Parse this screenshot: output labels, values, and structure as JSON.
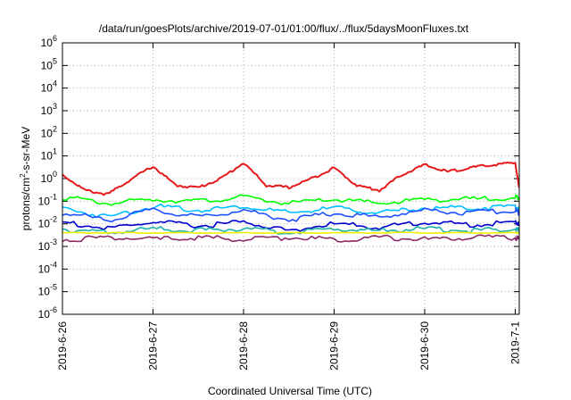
{
  "chart_data": {
    "type": "line",
    "title": "/data/run/goesPlots/archive/2019-07-01/01:00/flux/../flux/5daysMoonFluxes.txt",
    "xlabel": "Coordinated Universal Time (UTC)",
    "ylabel_main": "protons/cm",
    "ylabel_sup": "2",
    "ylabel_rest": "-s-sr-MeV",
    "y_scale": "log",
    "ylim": [
      1e-06,
      1000000.0
    ],
    "xlim_days": [
      "2019-6-26",
      "2019-7-1 01:00"
    ],
    "y_ticks": [
      {
        "exp": "-6"
      },
      {
        "exp": "-5"
      },
      {
        "exp": "-4"
      },
      {
        "exp": "-3"
      },
      {
        "exp": "-2"
      },
      {
        "exp": "-1"
      },
      {
        "exp": "0"
      },
      {
        "exp": "1"
      },
      {
        "exp": "2"
      },
      {
        "exp": "3"
      },
      {
        "exp": "4"
      },
      {
        "exp": "5"
      },
      {
        "exp": "6"
      }
    ],
    "y_tick_base": "10",
    "x_ticks": [
      "2019-6-26",
      "2019-6-27",
      "2019-6-28",
      "2019-6-29",
      "2019-6-30",
      "2019-7-1"
    ],
    "grid": true,
    "legend": "none",
    "series": [
      {
        "color": "#e41a1c",
        "points": [
          [
            "2019-06-26 00:00",
            1.5
          ],
          [
            "2019-06-26 06:00",
            0.3
          ],
          [
            "2019-06-26 12:00",
            0.2
          ],
          [
            "2019-06-26 18:00",
            0.9
          ],
          [
            "2019-06-27 00:00",
            3.5
          ],
          [
            "2019-06-27 06:00",
            0.5
          ],
          [
            "2019-06-27 12:00",
            0.4
          ],
          [
            "2019-06-27 18:00",
            1.0
          ],
          [
            "2019-06-28 00:00",
            5.0
          ],
          [
            "2019-06-28 06:00",
            0.5
          ],
          [
            "2019-06-28 12:00",
            0.4
          ],
          [
            "2019-06-28 18:00",
            1.0
          ],
          [
            "2019-06-29 00:00",
            3.0
          ],
          [
            "2019-06-29 06:00",
            0.5
          ],
          [
            "2019-06-29 12:00",
            0.3
          ],
          [
            "2019-06-29 18:00",
            1.5
          ],
          [
            "2019-06-30 00:00",
            4.0
          ],
          [
            "2019-06-30 06:00",
            2.0
          ],
          [
            "2019-06-30 12:00",
            3.0
          ],
          [
            "2019-06-30 18:00",
            4.0
          ],
          [
            "2019-07-01 00:00",
            5.0
          ],
          [
            "2019-07-01 01:00",
            0.4
          ]
        ]
      },
      {
        "color": "#00ff00",
        "points": [
          [
            "2019-06-26 00:00",
            0.15
          ],
          [
            "2019-06-26 12:00",
            0.08
          ],
          [
            "2019-06-27 00:00",
            0.12
          ],
          [
            "2019-06-27 12:00",
            0.1
          ],
          [
            "2019-06-28 00:00",
            0.15
          ],
          [
            "2019-06-28 12:00",
            0.08
          ],
          [
            "2019-06-29 00:00",
            0.12
          ],
          [
            "2019-06-29 12:00",
            0.08
          ],
          [
            "2019-06-30 00:00",
            0.12
          ],
          [
            "2019-06-30 12:00",
            0.12
          ],
          [
            "2019-07-01 00:00",
            0.15
          ],
          [
            "2019-07-01 01:00",
            0.15
          ]
        ]
      },
      {
        "color": "#00bfff",
        "points": [
          [
            "2019-06-26 00:00",
            0.05
          ],
          [
            "2019-06-26 12:00",
            0.02
          ],
          [
            "2019-06-27 00:00",
            0.06
          ],
          [
            "2019-06-27 12:00",
            0.04
          ],
          [
            "2019-06-28 00:00",
            0.06
          ],
          [
            "2019-06-28 12:00",
            0.03
          ],
          [
            "2019-06-29 00:00",
            0.05
          ],
          [
            "2019-06-29 12:00",
            0.03
          ],
          [
            "2019-06-30 00:00",
            0.05
          ],
          [
            "2019-06-30 12:00",
            0.05
          ],
          [
            "2019-07-01 00:00",
            0.06
          ],
          [
            "2019-07-01 01:00",
            0.04
          ]
        ]
      },
      {
        "color": "#1e50ff",
        "points": [
          [
            "2019-06-26 00:00",
            0.03
          ],
          [
            "2019-06-26 12:00",
            0.015
          ],
          [
            "2019-06-27 00:00",
            0.04
          ],
          [
            "2019-06-27 12:00",
            0.02
          ],
          [
            "2019-06-28 00:00",
            0.04
          ],
          [
            "2019-06-28 12:00",
            0.015
          ],
          [
            "2019-06-29 00:00",
            0.03
          ],
          [
            "2019-06-29 12:00",
            0.02
          ],
          [
            "2019-06-30 00:00",
            0.04
          ],
          [
            "2019-06-30 12:00",
            0.03
          ],
          [
            "2019-07-01 00:00",
            0.04
          ],
          [
            "2019-07-01 01:00",
            0.03
          ]
        ]
      },
      {
        "color": "#0000cd",
        "points": [
          [
            "2019-06-26 00:00",
            0.012
          ],
          [
            "2019-06-26 12:00",
            0.006
          ],
          [
            "2019-06-27 00:00",
            0.012
          ],
          [
            "2019-06-27 12:00",
            0.008
          ],
          [
            "2019-06-28 00:00",
            0.012
          ],
          [
            "2019-06-28 12:00",
            0.005
          ],
          [
            "2019-06-29 00:00",
            0.01
          ],
          [
            "2019-06-29 12:00",
            0.007
          ],
          [
            "2019-06-30 00:00",
            0.012
          ],
          [
            "2019-06-30 12:00",
            0.009
          ],
          [
            "2019-07-01 00:00",
            0.012
          ],
          [
            "2019-07-01 01:00",
            0.01
          ]
        ]
      },
      {
        "color": "#20b2aa",
        "points": [
          [
            "2019-06-26 00:00",
            0.006
          ],
          [
            "2019-06-26 12:00",
            0.004
          ],
          [
            "2019-06-27 00:00",
            0.006
          ],
          [
            "2019-06-27 12:00",
            0.005
          ],
          [
            "2019-06-28 00:00",
            0.006
          ],
          [
            "2019-06-28 12:00",
            0.004
          ],
          [
            "2019-06-29 00:00",
            0.006
          ],
          [
            "2019-06-29 12:00",
            0.005
          ],
          [
            "2019-06-30 00:00",
            0.006
          ],
          [
            "2019-06-30 12:00",
            0.005
          ],
          [
            "2019-07-01 00:00",
            0.006
          ],
          [
            "2019-07-01 01:00",
            0.005
          ]
        ]
      },
      {
        "color": "#f0f000",
        "points": [
          [
            "2019-06-26 00:00",
            0.004
          ],
          [
            "2019-06-26 12:00",
            0.004
          ],
          [
            "2019-06-27 00:00",
            0.004
          ],
          [
            "2019-06-27 12:00",
            0.004
          ],
          [
            "2019-06-28 00:00",
            0.004
          ],
          [
            "2019-06-28 12:00",
            0.004
          ],
          [
            "2019-06-29 00:00",
            0.004
          ],
          [
            "2019-06-29 12:00",
            0.004
          ],
          [
            "2019-06-30 00:00",
            0.004
          ],
          [
            "2019-06-30 12:00",
            0.004
          ],
          [
            "2019-07-01 00:00",
            0.004
          ],
          [
            "2019-07-01 01:00",
            0.004
          ]
        ]
      },
      {
        "color": "#8b2a6b",
        "points": [
          [
            "2019-06-26 00:00",
            0.002
          ],
          [
            "2019-06-26 12:00",
            0.0025
          ],
          [
            "2019-06-27 00:00",
            0.002
          ],
          [
            "2019-06-27 12:00",
            0.0025
          ],
          [
            "2019-06-28 00:00",
            0.002
          ],
          [
            "2019-06-28 12:00",
            0.0025
          ],
          [
            "2019-06-29 00:00",
            0.002
          ],
          [
            "2019-06-29 12:00",
            0.0025
          ],
          [
            "2019-06-30 00:00",
            0.002
          ],
          [
            "2019-06-30 12:00",
            0.0025
          ],
          [
            "2019-07-01 00:00",
            0.0025
          ],
          [
            "2019-07-01 01:00",
            0.002
          ]
        ]
      }
    ]
  }
}
